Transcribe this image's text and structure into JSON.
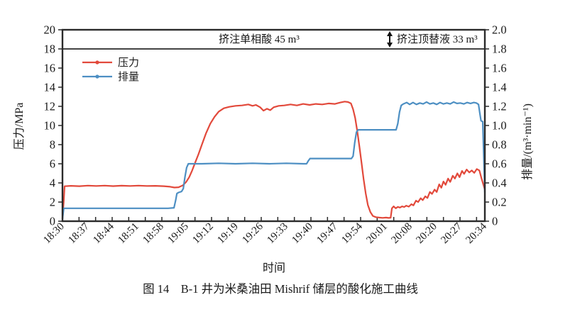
{
  "figure": {
    "caption": "图 14　B-1 井为米桑油田 Mishrif 储层的酸化施工曲线"
  },
  "chart_data": {
    "type": "line",
    "xlabel": "时间",
    "ylabel_left": "压力/MPa",
    "ylabel_right": "排量/(m³·min⁻¹)",
    "x_tick_labels": [
      "18:30",
      "18:37",
      "18:44",
      "18:51",
      "18:58",
      "19:05",
      "19:12",
      "19:19",
      "19:26",
      "19:33",
      "19:40",
      "19:47",
      "19:54",
      "20:01",
      "20:08",
      "20:20",
      "20:27",
      "20:34"
    ],
    "y_left": {
      "min": 0,
      "max": 20,
      "step": 2,
      "ticks": [
        0,
        2,
        4,
        6,
        8,
        10,
        12,
        14,
        16,
        18,
        20
      ]
    },
    "y_right": {
      "min": 0,
      "max": 2.0,
      "step": 0.2,
      "ticks": [
        0,
        0.2,
        0.4,
        0.6,
        0.8,
        1.0,
        1.2,
        1.4,
        1.6,
        1.8,
        2.0
      ]
    },
    "divider_y_left": 18,
    "annotations": [
      {
        "text": "挤注单相酸 45 m³"
      },
      {
        "text": "挤注顶替液 33 m³",
        "arrow": "double-vertical"
      }
    ],
    "legend": [
      {
        "name": "压力",
        "color": "#e2493b"
      },
      {
        "name": "排量",
        "color": "#4d8fc3"
      }
    ],
    "frame_color": "#2a2a2a",
    "series": [
      {
        "name": "压力",
        "axis": "left",
        "color": "#e2493b",
        "points": [
          [
            0.0,
            0.3
          ],
          [
            0.003,
            2.1
          ],
          [
            0.005,
            3.65
          ],
          [
            0.02,
            3.7
          ],
          [
            0.04,
            3.66
          ],
          [
            0.06,
            3.72
          ],
          [
            0.08,
            3.68
          ],
          [
            0.1,
            3.72
          ],
          [
            0.12,
            3.67
          ],
          [
            0.14,
            3.71
          ],
          [
            0.16,
            3.68
          ],
          [
            0.18,
            3.72
          ],
          [
            0.2,
            3.68
          ],
          [
            0.22,
            3.7
          ],
          [
            0.24,
            3.66
          ],
          [
            0.255,
            3.6
          ],
          [
            0.265,
            3.52
          ],
          [
            0.275,
            3.55
          ],
          [
            0.285,
            3.75
          ],
          [
            0.293,
            4.1
          ],
          [
            0.3,
            4.6
          ],
          [
            0.307,
            5.3
          ],
          [
            0.314,
            6.1
          ],
          [
            0.322,
            7.0
          ],
          [
            0.33,
            8.0
          ],
          [
            0.34,
            9.2
          ],
          [
            0.35,
            10.2
          ],
          [
            0.36,
            10.9
          ],
          [
            0.37,
            11.45
          ],
          [
            0.382,
            11.8
          ],
          [
            0.395,
            11.95
          ],
          [
            0.41,
            12.05
          ],
          [
            0.425,
            12.1
          ],
          [
            0.44,
            12.2
          ],
          [
            0.45,
            12.05
          ],
          [
            0.458,
            12.15
          ],
          [
            0.468,
            11.9
          ],
          [
            0.476,
            11.55
          ],
          [
            0.484,
            11.75
          ],
          [
            0.492,
            11.6
          ],
          [
            0.5,
            11.9
          ],
          [
            0.512,
            12.05
          ],
          [
            0.525,
            12.1
          ],
          [
            0.54,
            12.2
          ],
          [
            0.555,
            12.1
          ],
          [
            0.57,
            12.25
          ],
          [
            0.585,
            12.15
          ],
          [
            0.6,
            12.25
          ],
          [
            0.615,
            12.2
          ],
          [
            0.63,
            12.3
          ],
          [
            0.645,
            12.25
          ],
          [
            0.658,
            12.4
          ],
          [
            0.668,
            12.5
          ],
          [
            0.676,
            12.45
          ],
          [
            0.683,
            12.3
          ],
          [
            0.688,
            11.7
          ],
          [
            0.693,
            10.8
          ],
          [
            0.698,
            9.4
          ],
          [
            0.703,
            7.8
          ],
          [
            0.708,
            6.1
          ],
          [
            0.713,
            4.4
          ],
          [
            0.718,
            2.9
          ],
          [
            0.723,
            1.7
          ],
          [
            0.729,
            0.95
          ],
          [
            0.735,
            0.55
          ],
          [
            0.742,
            0.42
          ],
          [
            0.75,
            0.38
          ],
          [
            0.758,
            0.35
          ],
          [
            0.766,
            0.38
          ],
          [
            0.772,
            0.34
          ],
          [
            0.777,
            0.36
          ],
          [
            0.78,
            1.35
          ],
          [
            0.784,
            1.55
          ],
          [
            0.789,
            1.35
          ],
          [
            0.794,
            1.5
          ],
          [
            0.799,
            1.42
          ],
          [
            0.804,
            1.55
          ],
          [
            0.809,
            1.48
          ],
          [
            0.814,
            1.62
          ],
          [
            0.82,
            1.52
          ],
          [
            0.826,
            1.78
          ],
          [
            0.831,
            1.65
          ],
          [
            0.837,
            2.15
          ],
          [
            0.842,
            2.0
          ],
          [
            0.848,
            2.4
          ],
          [
            0.853,
            2.2
          ],
          [
            0.859,
            2.6
          ],
          [
            0.864,
            2.42
          ],
          [
            0.87,
            3.05
          ],
          [
            0.875,
            2.85
          ],
          [
            0.881,
            3.3
          ],
          [
            0.886,
            3.05
          ],
          [
            0.892,
            3.85
          ],
          [
            0.897,
            3.5
          ],
          [
            0.902,
            4.15
          ],
          [
            0.907,
            3.8
          ],
          [
            0.913,
            4.45
          ],
          [
            0.918,
            4.1
          ],
          [
            0.924,
            4.75
          ],
          [
            0.929,
            4.45
          ],
          [
            0.935,
            5.0
          ],
          [
            0.94,
            4.6
          ],
          [
            0.946,
            5.25
          ],
          [
            0.951,
            4.95
          ],
          [
            0.957,
            5.4
          ],
          [
            0.963,
            5.1
          ],
          [
            0.969,
            5.3
          ],
          [
            0.975,
            5.05
          ],
          [
            0.981,
            5.45
          ],
          [
            0.987,
            5.3
          ],
          [
            0.992,
            4.5
          ],
          [
            1.0,
            3.3
          ]
        ]
      },
      {
        "name": "排量",
        "axis": "right",
        "color": "#4d8fc3",
        "points": [
          [
            0.0,
            0.02
          ],
          [
            0.003,
            0.135
          ],
          [
            0.05,
            0.135
          ],
          [
            0.1,
            0.135
          ],
          [
            0.15,
            0.135
          ],
          [
            0.2,
            0.135
          ],
          [
            0.25,
            0.135
          ],
          [
            0.264,
            0.14
          ],
          [
            0.268,
            0.22
          ],
          [
            0.271,
            0.29
          ],
          [
            0.275,
            0.3
          ],
          [
            0.282,
            0.31
          ],
          [
            0.286,
            0.34
          ],
          [
            0.29,
            0.46
          ],
          [
            0.294,
            0.56
          ],
          [
            0.298,
            0.6
          ],
          [
            0.33,
            0.6
          ],
          [
            0.37,
            0.605
          ],
          [
            0.41,
            0.6
          ],
          [
            0.45,
            0.605
          ],
          [
            0.49,
            0.6
          ],
          [
            0.53,
            0.605
          ],
          [
            0.57,
            0.6
          ],
          [
            0.578,
            0.6
          ],
          [
            0.582,
            0.63
          ],
          [
            0.586,
            0.655
          ],
          [
            0.62,
            0.655
          ],
          [
            0.66,
            0.655
          ],
          [
            0.684,
            0.655
          ],
          [
            0.688,
            0.68
          ],
          [
            0.692,
            0.82
          ],
          [
            0.696,
            0.93
          ],
          [
            0.7,
            0.955
          ],
          [
            0.74,
            0.955
          ],
          [
            0.78,
            0.955
          ],
          [
            0.79,
            0.955
          ],
          [
            0.794,
            1.02
          ],
          [
            0.798,
            1.14
          ],
          [
            0.802,
            1.21
          ],
          [
            0.807,
            1.225
          ],
          [
            0.815,
            1.24
          ],
          [
            0.822,
            1.22
          ],
          [
            0.83,
            1.24
          ],
          [
            0.838,
            1.22
          ],
          [
            0.846,
            1.235
          ],
          [
            0.854,
            1.225
          ],
          [
            0.862,
            1.245
          ],
          [
            0.87,
            1.225
          ],
          [
            0.878,
            1.235
          ],
          [
            0.886,
            1.22
          ],
          [
            0.894,
            1.24
          ],
          [
            0.902,
            1.225
          ],
          [
            0.91,
            1.235
          ],
          [
            0.918,
            1.225
          ],
          [
            0.926,
            1.245
          ],
          [
            0.934,
            1.23
          ],
          [
            0.942,
            1.235
          ],
          [
            0.95,
            1.225
          ],
          [
            0.958,
            1.24
          ],
          [
            0.966,
            1.23
          ],
          [
            0.974,
            1.24
          ],
          [
            0.98,
            1.235
          ],
          [
            0.985,
            1.22
          ],
          [
            0.988,
            1.13
          ],
          [
            0.991,
            1.05
          ],
          [
            0.995,
            1.04
          ],
          [
            0.997,
            0.75
          ],
          [
            0.999,
            0.45
          ],
          [
            1.0,
            0.3
          ]
        ]
      }
    ]
  }
}
